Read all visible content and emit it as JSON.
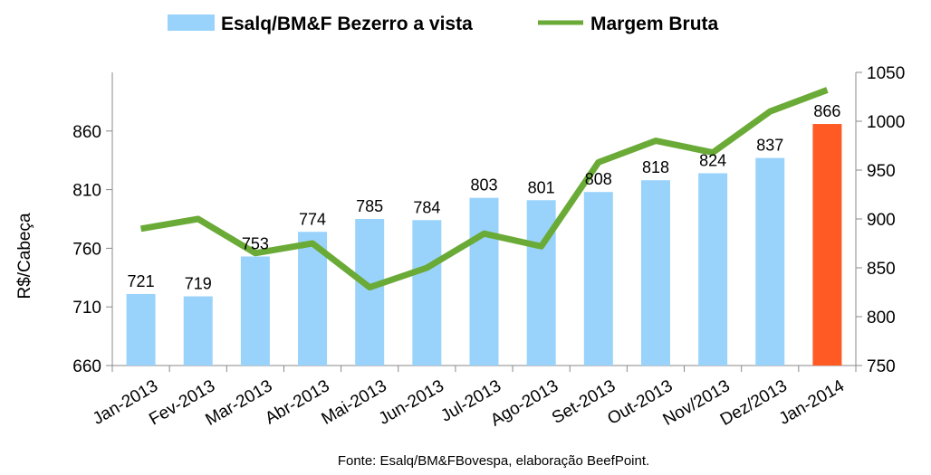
{
  "chart_data": {
    "type": "bar",
    "categories": [
      "Jan-2013",
      "Fev-2013",
      "Mar-2013",
      "Abr-2013",
      "Mai-2013",
      "Jun-2013",
      "Jul-2013",
      "Ago-2013",
      "Set-2013",
      "Out-2013",
      "Nov/2013",
      "Dez/2013",
      "Jan-2014"
    ],
    "series": [
      {
        "name": "Esalq/BM&F Bezerro a vista",
        "type": "bar",
        "axis": "left",
        "values": [
          721,
          719,
          753,
          774,
          785,
          784,
          803,
          801,
          808,
          818,
          824,
          837,
          866
        ],
        "labels": [
          "721",
          "719",
          "753",
          "774",
          "785",
          "784",
          "803",
          "801",
          "808",
          "818",
          "824",
          "837",
          "866"
        ],
        "color": "#99d3fb",
        "highlight_color": "#ff5a24",
        "highlight_index": 12
      },
      {
        "name": "Margem Bruta",
        "type": "line",
        "axis": "right",
        "values": [
          890,
          900,
          865,
          875,
          830,
          850,
          885,
          872,
          958,
          980,
          968,
          1010,
          1032
        ],
        "color": "#6aaa36"
      }
    ],
    "ylabel": "R$/Cabeça",
    "ylim": [
      660,
      910
    ],
    "yticks": [
      660,
      710,
      760,
      810,
      860
    ],
    "y2lim": [
      750,
      1050
    ],
    "y2ticks": [
      750,
      800,
      850,
      900,
      950,
      1000,
      1050
    ],
    "legend": "top",
    "grid": false,
    "source": "Fonte: Esalq/BM&FBovespa, elaboração BeefPoint."
  }
}
